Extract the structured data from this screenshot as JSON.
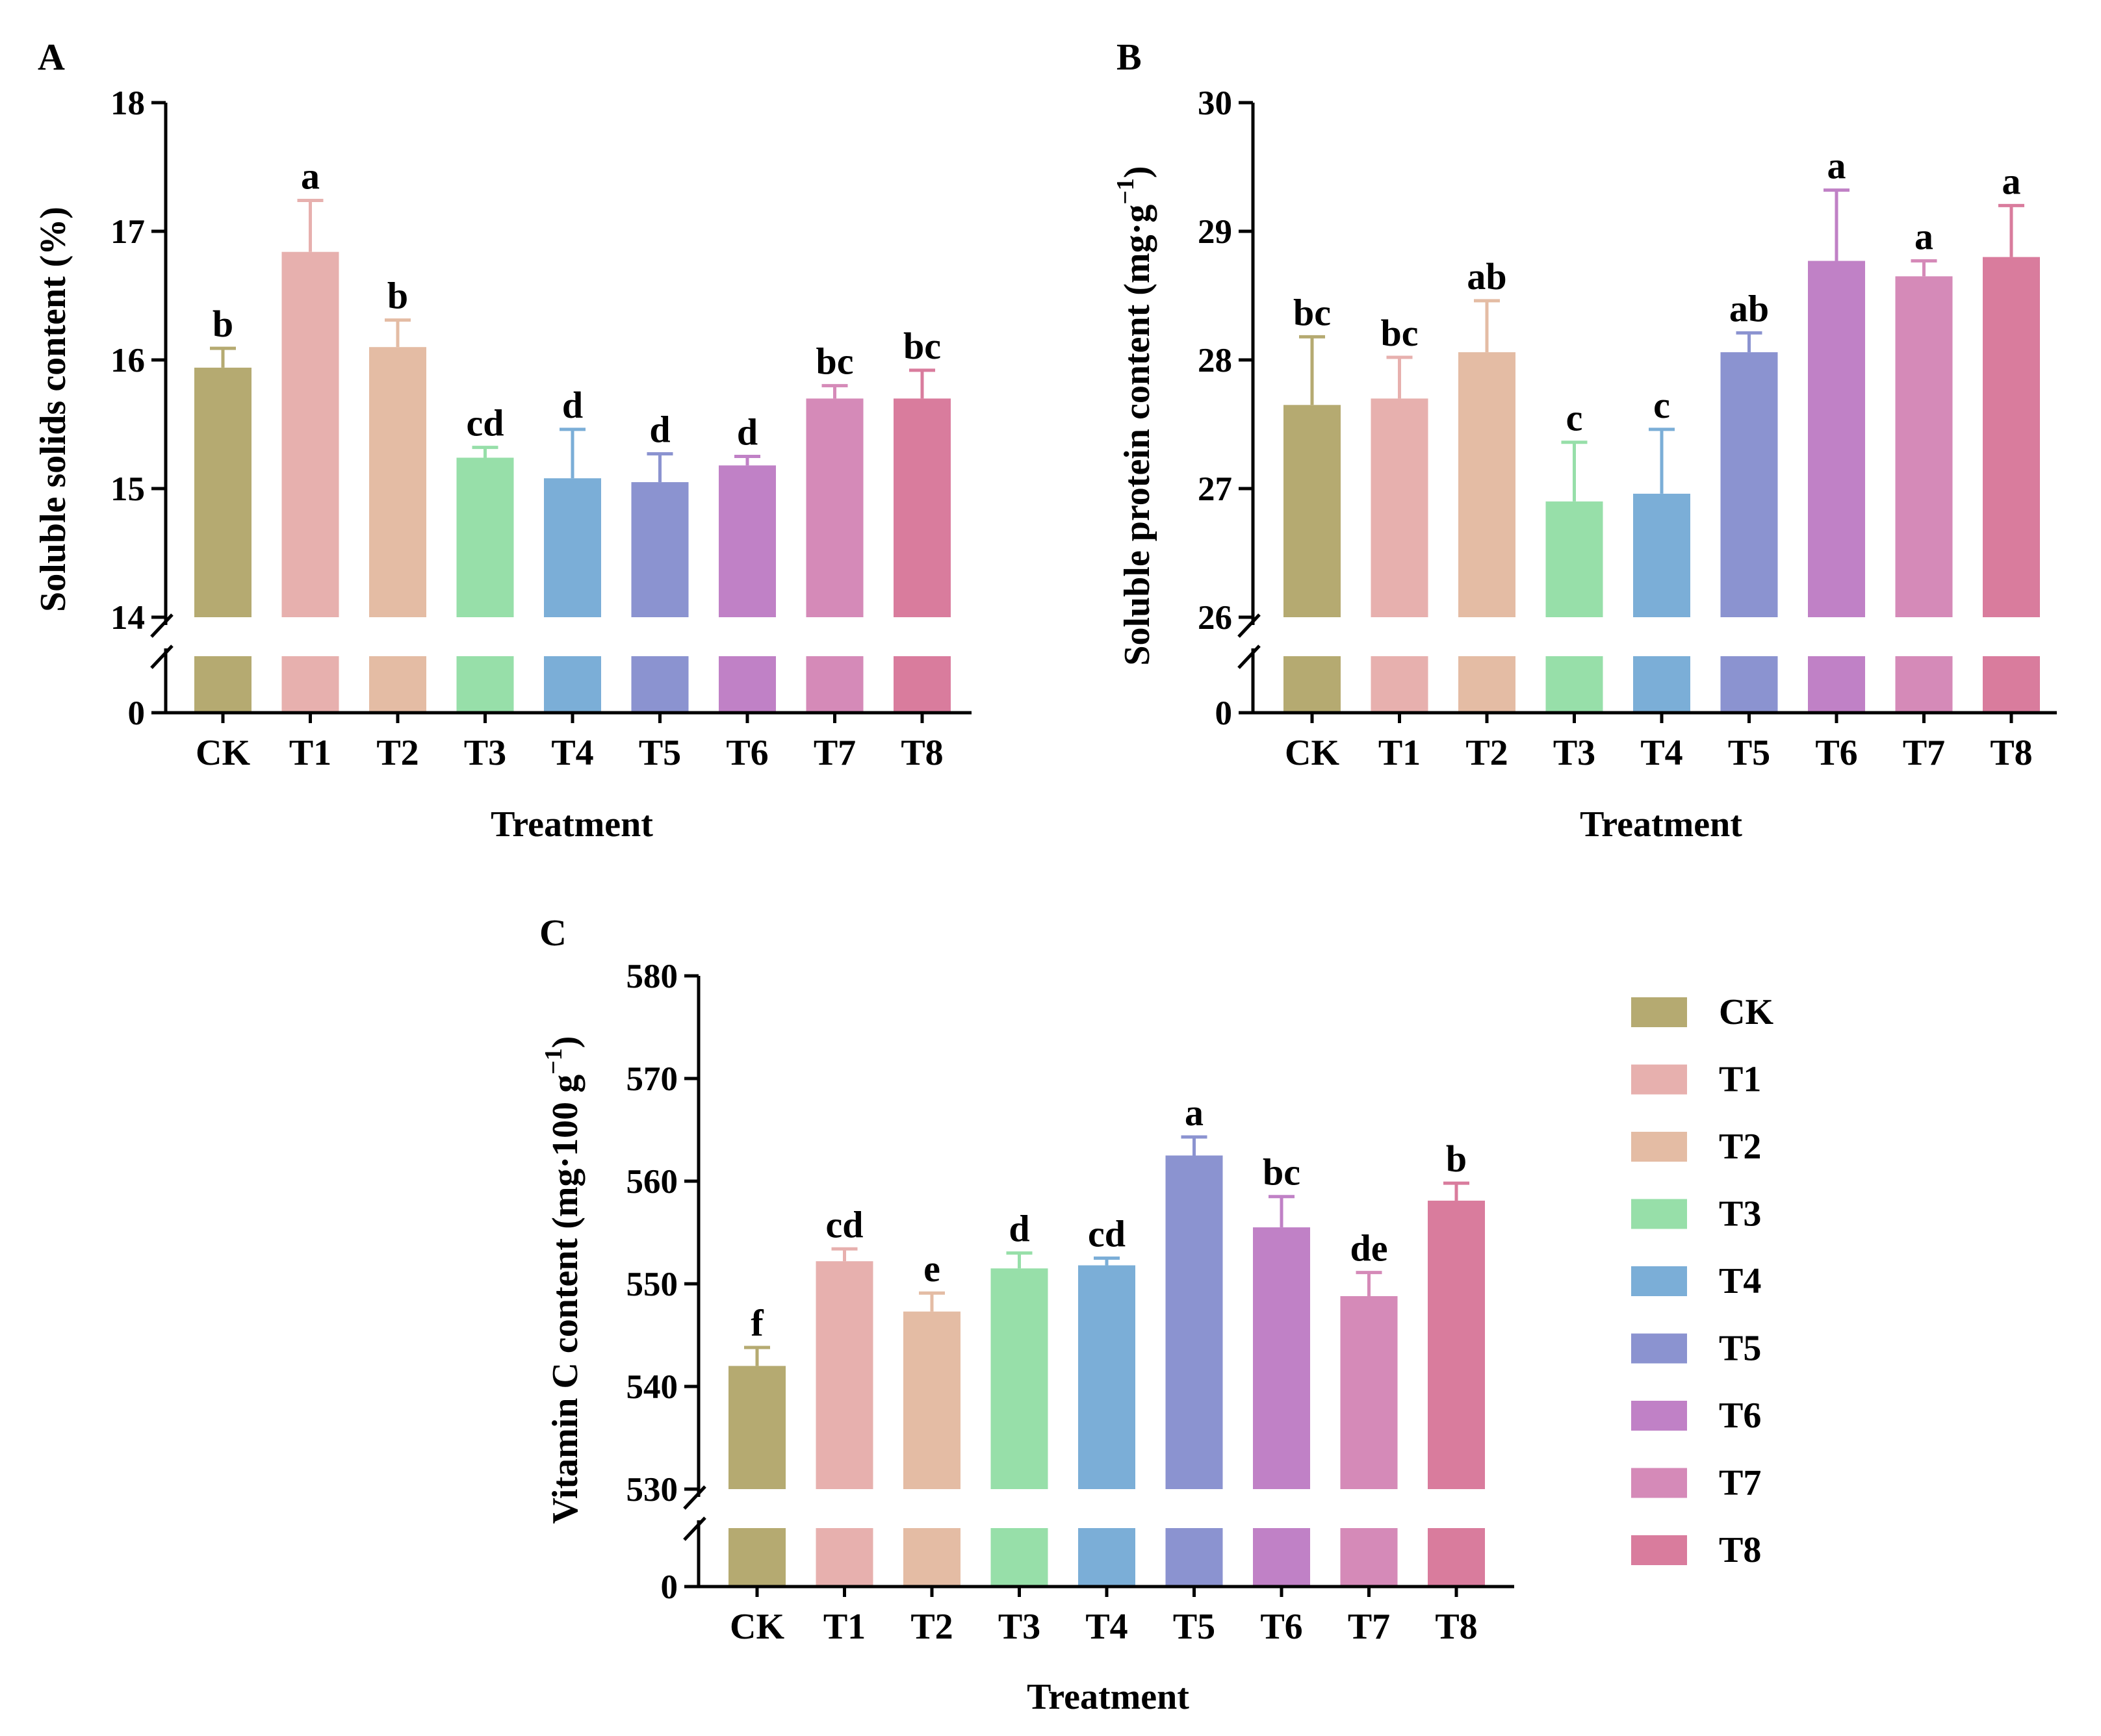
{
  "colors": {
    "CK": "#b5aa71",
    "T1": "#e7b0ae",
    "T2": "#e4bca4",
    "T3": "#97dfa9",
    "T4": "#7baed7",
    "T5": "#8b93d0",
    "T6": "#c081c6",
    "T7": "#d58ab8",
    "T8": "#d97c9d"
  },
  "legend": {
    "items": [
      "CK",
      "T1",
      "T2",
      "T3",
      "T4",
      "T5",
      "T6",
      "T7",
      "T8"
    ]
  },
  "chart_data": [
    {
      "panel": "A",
      "type": "bar",
      "xlabel": "Treatment",
      "ylabel": "Soluble solids content (%)",
      "categories": [
        "CK",
        "T1",
        "T2",
        "T3",
        "T4",
        "T5",
        "T6",
        "T7",
        "T8"
      ],
      "values": [
        15.94,
        16.84,
        16.1,
        15.24,
        15.08,
        15.05,
        15.18,
        15.7,
        15.7
      ],
      "errors": [
        0.15,
        0.4,
        0.21,
        0.08,
        0.38,
        0.22,
        0.07,
        0.1,
        0.22
      ],
      "significance": [
        "b",
        "a",
        "b",
        "cd",
        "d",
        "d",
        "d",
        "bc",
        "bc"
      ],
      "ylim": [
        14,
        18
      ],
      "yticks": [
        14,
        15,
        16,
        17,
        18
      ],
      "ytick_labels": [
        "14",
        "15",
        "16",
        "17",
        "18"
      ],
      "axis_break": true,
      "break_lower_label": "0"
    },
    {
      "panel": "B",
      "type": "bar",
      "xlabel": "Treatment",
      "ylabel_main": "Soluble protein content (mg·g",
      "ylabel_sup": "−1",
      "ylabel_end": ")",
      "categories": [
        "CK",
        "T1",
        "T2",
        "T3",
        "T4",
        "T5",
        "T6",
        "T7",
        "T8"
      ],
      "values": [
        27.65,
        27.7,
        28.06,
        26.9,
        26.96,
        28.06,
        28.77,
        28.65,
        28.8
      ],
      "errors": [
        0.53,
        0.32,
        0.4,
        0.46,
        0.5,
        0.15,
        0.55,
        0.12,
        0.4
      ],
      "significance": [
        "bc",
        "bc",
        "ab",
        "c",
        "c",
        "ab",
        "a",
        "a",
        "a"
      ],
      "ylim": [
        26,
        30
      ],
      "yticks": [
        26,
        27,
        28,
        29,
        30
      ],
      "ytick_labels": [
        "26",
        "27",
        "28",
        "29",
        "30"
      ],
      "axis_break": true,
      "break_lower_label": "0"
    },
    {
      "panel": "C",
      "type": "bar",
      "xlabel": "Treatment",
      "ylabel_main": "Vitamin C content (mg·100 g",
      "ylabel_sup": "−1",
      "ylabel_end": ")",
      "categories": [
        "CK",
        "T1",
        "T2",
        "T3",
        "T4",
        "T5",
        "T6",
        "T7",
        "T8"
      ],
      "values": [
        542,
        552.2,
        547.3,
        551.5,
        551.8,
        562.5,
        555.5,
        548.8,
        558.1
      ],
      "errors": [
        1.8,
        1.2,
        1.8,
        1.5,
        0.7,
        1.8,
        3.0,
        2.3,
        1.7
      ],
      "significance": [
        "f",
        "cd",
        "e",
        "d",
        "cd",
        "a",
        "bc",
        "de",
        "b"
      ],
      "ylim": [
        530,
        580
      ],
      "yticks": [
        530,
        540,
        550,
        560,
        570,
        580
      ],
      "ytick_labels": [
        "530",
        "540",
        "550",
        "560",
        "570",
        "580"
      ],
      "axis_break": true,
      "break_lower_label": "0"
    }
  ]
}
